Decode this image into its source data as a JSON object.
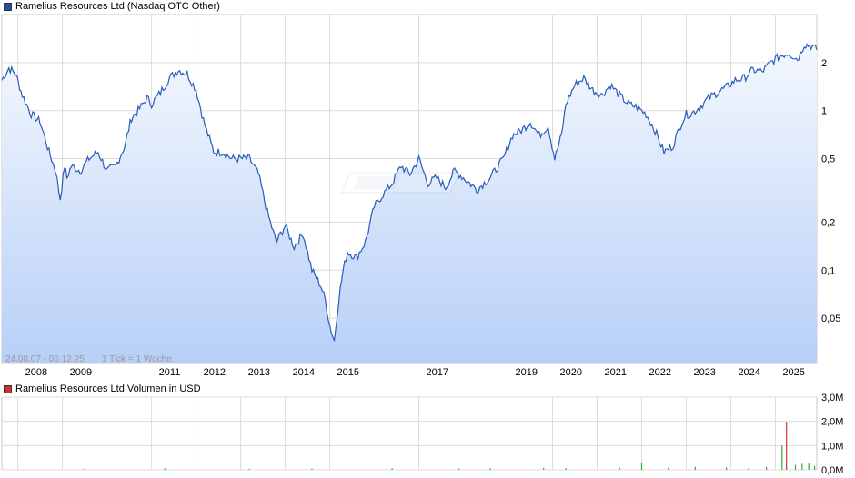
{
  "price_chart": {
    "legend": "Ramelius Resources Ltd (Nasdaq OTC Other)",
    "legend_color": "#1f4fa8",
    "range_text": "24.08.07 - 06.12.25",
    "tick_info": "1 Tick = 1 Woche",
    "line_color": "#2a5cb8"
  },
  "volume_chart": {
    "legend": "Ramelius Resources Ltd Volumen in USD",
    "legend_color": "#cc3333"
  },
  "chart_data": [
    {
      "type": "line",
      "yscale": "log",
      "ylim": [
        0.026,
        4.0
      ],
      "xlim": [
        2007.64,
        2025.93
      ],
      "ytick_labels": [
        "2",
        "1",
        "0,5",
        "0,2",
        "0,1",
        "0,05"
      ],
      "ytick_values": [
        2,
        1,
        0.5,
        0.2,
        0.1,
        0.05
      ],
      "xtick_labels": [
        "2008",
        "2009",
        "2011",
        "2012",
        "2013",
        "2014",
        "2015",
        "2017",
        "2019",
        "2020",
        "2021",
        "2022",
        "2023",
        "2024",
        "2025"
      ],
      "xtick_values": [
        2008.0,
        2009.0,
        2011.0,
        2012.0,
        2013.0,
        2014.0,
        2015.0,
        2017.0,
        2019.0,
        2020.0,
        2021.0,
        2022.0,
        2023.0,
        2024.0,
        2025.0
      ],
      "grid": true,
      "series": [
        {
          "x": [
            2007.64,
            2007.8,
            2007.95,
            2008.1,
            2008.3,
            2008.5,
            2008.7,
            2008.85,
            2008.95,
            2009.05,
            2009.1,
            2009.2,
            2009.4,
            2009.6,
            2009.8,
            2010.0,
            2010.2,
            2010.4,
            2010.55,
            2010.7,
            2010.9,
            2011.0,
            2011.2,
            2011.4,
            2011.6,
            2011.8,
            2012.0,
            2012.2,
            2012.4,
            2012.6,
            2012.8,
            2013.0,
            2013.2,
            2013.4,
            2013.6,
            2013.8,
            2014.0,
            2014.2,
            2014.4,
            2014.6,
            2014.8,
            2014.9,
            2015.0,
            2015.1,
            2015.2,
            2015.3,
            2015.4,
            2015.6,
            2015.8,
            2016.0,
            2016.2,
            2016.4,
            2016.6,
            2016.8,
            2017.0,
            2017.2,
            2017.4,
            2017.6,
            2017.8,
            2018.0,
            2018.3,
            2018.6,
            2018.9,
            2019.1,
            2019.3,
            2019.5,
            2019.7,
            2019.9,
            2020.05,
            2020.2,
            2020.3,
            2020.5,
            2020.7,
            2020.9,
            2021.1,
            2021.3,
            2021.5,
            2021.7,
            2021.9,
            2022.1,
            2022.3,
            2022.5,
            2022.7,
            2022.9,
            2023.0,
            2023.1,
            2023.3,
            2023.5,
            2023.7,
            2023.9,
            2024.1,
            2024.3,
            2024.5,
            2024.7,
            2024.9,
            2025.1,
            2025.3,
            2025.5,
            2025.65,
            2025.8,
            2025.93
          ],
          "y": [
            1.55,
            1.85,
            1.7,
            1.25,
            0.95,
            0.85,
            0.55,
            0.42,
            0.28,
            0.45,
            0.38,
            0.45,
            0.42,
            0.5,
            0.55,
            0.42,
            0.45,
            0.6,
            0.9,
            1.0,
            1.2,
            1.1,
            1.3,
            1.6,
            1.8,
            1.7,
            1.35,
            0.8,
            0.55,
            0.55,
            0.5,
            0.5,
            0.5,
            0.4,
            0.23,
            0.15,
            0.19,
            0.14,
            0.17,
            0.1,
            0.08,
            0.065,
            0.045,
            0.036,
            0.065,
            0.1,
            0.13,
            0.12,
            0.15,
            0.25,
            0.3,
            0.35,
            0.45,
            0.4,
            0.5,
            0.35,
            0.38,
            0.33,
            0.42,
            0.38,
            0.32,
            0.38,
            0.5,
            0.7,
            0.75,
            0.85,
            0.7,
            0.8,
            0.5,
            0.7,
            1.1,
            1.45,
            1.6,
            1.35,
            1.25,
            1.45,
            1.25,
            1.1,
            1.05,
            0.95,
            0.75,
            0.55,
            0.6,
            0.85,
            0.95,
            0.95,
            1.05,
            1.2,
            1.3,
            1.4,
            1.55,
            1.6,
            1.8,
            1.75,
            2.0,
            2.2,
            2.3,
            2.1,
            2.6,
            2.55,
            2.4
          ]
        }
      ]
    },
    {
      "type": "bar",
      "ylim": [
        0,
        3.0
      ],
      "ytick_labels": [
        "3,0M",
        "2,0M",
        "1,0M",
        "0,0M"
      ],
      "ytick_values": [
        3.0,
        2.0,
        1.0,
        0.0
      ],
      "xlim": [
        2007.64,
        2025.93
      ],
      "grid": true,
      "series": [
        {
          "name": "Volumen in USD",
          "x": [
            2009.5,
            2011.3,
            2013.2,
            2014.6,
            2016.4,
            2017.9,
            2018.6,
            2019.8,
            2020.3,
            2021.5,
            2022.0,
            2022.6,
            2023.2,
            2023.9,
            2024.4,
            2024.8,
            2025.15,
            2025.25,
            2025.45,
            2025.6,
            2025.75,
            2025.88
          ],
          "y": [
            0.05,
            0.06,
            0.04,
            0.05,
            0.07,
            0.05,
            0.06,
            0.08,
            0.07,
            0.1,
            0.28,
            0.08,
            0.12,
            0.1,
            0.08,
            0.12,
            1.0,
            1.98,
            0.2,
            0.25,
            0.3,
            0.15
          ]
        }
      ]
    }
  ]
}
